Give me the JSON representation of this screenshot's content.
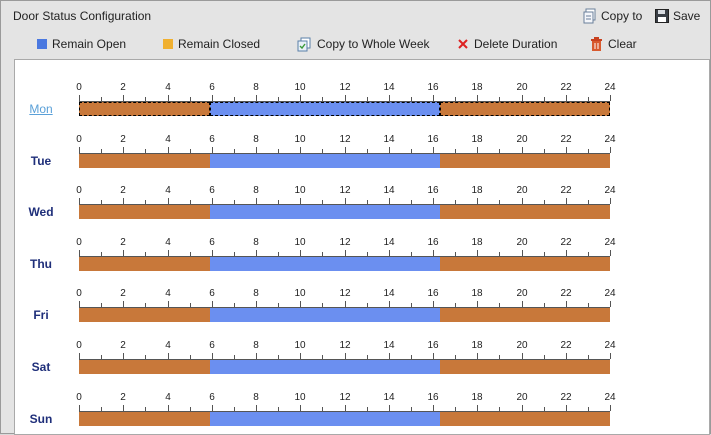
{
  "header": {
    "title": "Door Status Configuration",
    "copy_to_label": "Copy to",
    "save_label": "Save"
  },
  "toolbar": {
    "remain_open_label": "Remain Open",
    "remain_closed_label": "Remain Closed",
    "copy_week_label": "Copy to Whole Week",
    "delete_duration_label": "Delete Duration",
    "clear_label": "Clear"
  },
  "colors": {
    "open": "#6b8ff0",
    "closed": "#c8783a",
    "legend_open": "#4a78e0",
    "legend_closed": "#f0b030"
  },
  "schedule": {
    "hour_labels": [
      "0",
      "2",
      "4",
      "6",
      "8",
      "10",
      "12",
      "14",
      "16",
      "18",
      "20",
      "22",
      "24"
    ],
    "selected_day": "Mon",
    "days": [
      {
        "name": "Mon",
        "segments": [
          {
            "status": "closed",
            "start": 0,
            "end": 5.9
          },
          {
            "status": "open",
            "start": 5.9,
            "end": 16.3
          },
          {
            "status": "closed",
            "start": 16.3,
            "end": 24
          }
        ]
      },
      {
        "name": "Tue",
        "segments": [
          {
            "status": "closed",
            "start": 0,
            "end": 5.9
          },
          {
            "status": "open",
            "start": 5.9,
            "end": 16.3
          },
          {
            "status": "closed",
            "start": 16.3,
            "end": 24
          }
        ]
      },
      {
        "name": "Wed",
        "segments": [
          {
            "status": "closed",
            "start": 0,
            "end": 5.9
          },
          {
            "status": "open",
            "start": 5.9,
            "end": 16.3
          },
          {
            "status": "closed",
            "start": 16.3,
            "end": 24
          }
        ]
      },
      {
        "name": "Thu",
        "segments": [
          {
            "status": "closed",
            "start": 0,
            "end": 5.9
          },
          {
            "status": "open",
            "start": 5.9,
            "end": 16.3
          },
          {
            "status": "closed",
            "start": 16.3,
            "end": 24
          }
        ]
      },
      {
        "name": "Fri",
        "segments": [
          {
            "status": "closed",
            "start": 0,
            "end": 5.9
          },
          {
            "status": "open",
            "start": 5.9,
            "end": 16.3
          },
          {
            "status": "closed",
            "start": 16.3,
            "end": 24
          }
        ]
      },
      {
        "name": "Sat",
        "segments": [
          {
            "status": "closed",
            "start": 0,
            "end": 5.9
          },
          {
            "status": "open",
            "start": 5.9,
            "end": 16.3
          },
          {
            "status": "closed",
            "start": 16.3,
            "end": 24
          }
        ]
      },
      {
        "name": "Sun",
        "segments": [
          {
            "status": "closed",
            "start": 0,
            "end": 5.9
          },
          {
            "status": "open",
            "start": 5.9,
            "end": 16.3
          },
          {
            "status": "closed",
            "start": 16.3,
            "end": 24
          }
        ]
      }
    ]
  }
}
